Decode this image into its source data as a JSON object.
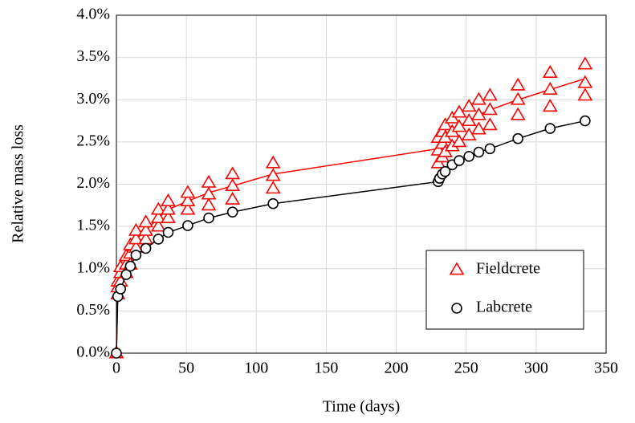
{
  "chart_data": {
    "type": "scatter",
    "x_label": "Time (days)",
    "y_label": "Relative mass loss",
    "xlim": [
      0,
      350
    ],
    "xticks": [
      0,
      50,
      100,
      150,
      200,
      250,
      300,
      350
    ],
    "ylim": [
      0,
      4
    ],
    "yticks": [
      {
        "value": 0,
        "label": "0.0%"
      },
      {
        "value": 0.5,
        "label": "0.5%"
      },
      {
        "value": 1,
        "label": "1.0%"
      },
      {
        "value": 1.5,
        "label": "1.5%"
      },
      {
        "value": 2,
        "label": "2.0%"
      },
      {
        "value": 2.5,
        "label": "2.5%"
      },
      {
        "value": 3,
        "label": "3.0%"
      },
      {
        "value": 3.5,
        "label": "3.5%"
      },
      {
        "value": 4,
        "label": "4.0%"
      }
    ],
    "grid": true,
    "legend_position": "lower right",
    "series": [
      {
        "name": "Fieldcrete",
        "color": "#ff0000",
        "marker": "triangle",
        "x": [
          0,
          0,
          0,
          1,
          1,
          1,
          3,
          3,
          3,
          7,
          7,
          7,
          10,
          10,
          10,
          14,
          14,
          14,
          21,
          21,
          21,
          30,
          30,
          30,
          37,
          37,
          37,
          51,
          51,
          51,
          66,
          66,
          66,
          83,
          83,
          83,
          112,
          112,
          112,
          230,
          230,
          230,
          233,
          233,
          233,
          235,
          235,
          235,
          240,
          240,
          240,
          245,
          245,
          245,
          252,
          252,
          252,
          259,
          259,
          259,
          267,
          267,
          267,
          287,
          287,
          287,
          310,
          310,
          310,
          335,
          335,
          335
        ],
        "values": [
          0,
          0,
          0,
          0.7,
          0.78,
          0.85,
          0.85,
          0.95,
          1.02,
          0.95,
          1.05,
          1.15,
          1.05,
          1.18,
          1.28,
          1.25,
          1.35,
          1.45,
          1.35,
          1.45,
          1.55,
          1.5,
          1.6,
          1.7,
          1.6,
          1.7,
          1.8,
          1.7,
          1.8,
          1.9,
          1.75,
          1.88,
          2.02,
          1.82,
          1.98,
          2.12,
          1.95,
          2.1,
          2.25,
          2.25,
          2.4,
          2.55,
          2.32,
          2.48,
          2.62,
          2.38,
          2.55,
          2.7,
          2.45,
          2.62,
          2.78,
          2.5,
          2.68,
          2.85,
          2.58,
          2.75,
          2.92,
          2.65,
          2.82,
          3.0,
          2.7,
          2.88,
          3.05,
          2.82,
          3.0,
          3.17,
          2.92,
          3.12,
          3.32,
          3.05,
          3.2,
          3.42
        ],
        "line_x": [
          0,
          1,
          3,
          7,
          10,
          14,
          21,
          30,
          37,
          51,
          66,
          83,
          112,
          230,
          233,
          235,
          240,
          245,
          252,
          259,
          267,
          287,
          310,
          335
        ],
        "line_values": [
          0,
          0.8,
          0.95,
          1.05,
          1.15,
          1.35,
          1.45,
          1.6,
          1.7,
          1.8,
          1.9,
          1.98,
          2.12,
          2.42,
          2.5,
          2.55,
          2.62,
          2.68,
          2.75,
          2.82,
          2.88,
          3.0,
          3.12,
          3.25
        ]
      },
      {
        "name": "Labcrete",
        "color": "#000000",
        "marker": "circle",
        "x": [
          0,
          1,
          3,
          7,
          10,
          14,
          21,
          30,
          37,
          51,
          66,
          83,
          112,
          230,
          231,
          233,
          235,
          240,
          245,
          252,
          259,
          267,
          287,
          310,
          335
        ],
        "values": [
          0,
          0.67,
          0.76,
          0.93,
          1.03,
          1.16,
          1.24,
          1.35,
          1.43,
          1.51,
          1.6,
          1.67,
          1.77,
          2.03,
          2.07,
          2.12,
          2.15,
          2.23,
          2.28,
          2.33,
          2.38,
          2.42,
          2.54,
          2.66,
          2.75
        ],
        "line_x": [
          0,
          1,
          3,
          7,
          10,
          14,
          21,
          30,
          37,
          51,
          66,
          83,
          112,
          230,
          231,
          233,
          235,
          240,
          245,
          252,
          259,
          267,
          287,
          310,
          335
        ],
        "line_values": [
          0,
          0.67,
          0.76,
          0.93,
          1.03,
          1.16,
          1.24,
          1.35,
          1.43,
          1.51,
          1.6,
          1.67,
          1.77,
          2.03,
          2.07,
          2.12,
          2.15,
          2.23,
          2.28,
          2.33,
          2.38,
          2.42,
          2.54,
          2.66,
          2.75
        ]
      }
    ]
  }
}
